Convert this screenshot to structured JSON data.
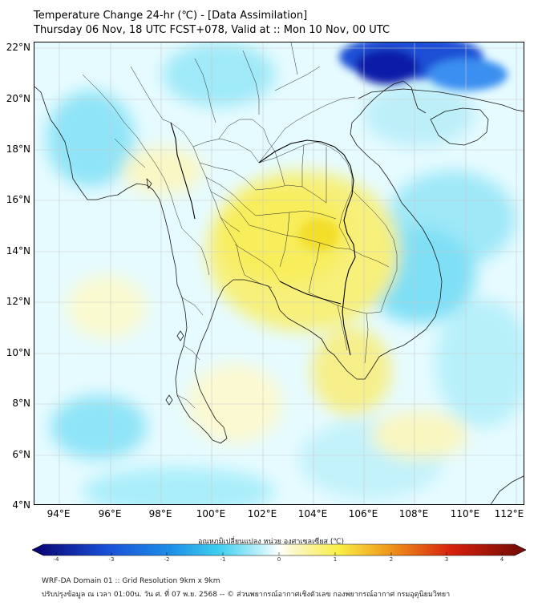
{
  "title": {
    "line1": "Temperature Change 24-hr (℃) - [Data Assimilation]",
    "line2": "Thursday 06 Nov, 18 UTC FCST+078, Valid at :: Mon 10 Nov, 00 UTC"
  },
  "map": {
    "lat_labels": [
      "22°N",
      "20°N",
      "18°N",
      "16°N",
      "14°N",
      "12°N",
      "10°N",
      "8°N",
      "6°N",
      "4°N"
    ],
    "lon_labels": [
      "94°E",
      "96°E",
      "98°E",
      "100°E",
      "102°E",
      "104°E",
      "106°E",
      "108°E",
      "110°E",
      "112°E"
    ]
  },
  "colorbar": {
    "title": "อุณหภูมิเปลี่ยนแปลง หน่วย องศาเซลเซียส (℃)",
    "ticks": [
      "-4",
      "-3",
      "-2",
      "-1",
      "0",
      "1",
      "2",
      "3",
      "4"
    ],
    "colors": {
      "low": "#08006e",
      "mid_low": "#1d8ee8",
      "cyan": "#3fd0ef",
      "white": "#ffffff",
      "yellow": "#f9ef46",
      "orange": "#f09a1b",
      "red": "#d6200c",
      "high": "#6e0a05"
    }
  },
  "footer": {
    "line1": "WRF-DA Domain 01 :: Grid Resolution 9km x 9km",
    "line2": "ปรับปรุงข้อมูล ณ เวลา 01:00น. วัน ศ. ที่ 07 พ.ย. 2568 -- © ส่วนพยากรณ์อากาศเชิงตัวเลข กองพยากรณ์อากาศ กรมอุตุนิยมวิทยา"
  }
}
